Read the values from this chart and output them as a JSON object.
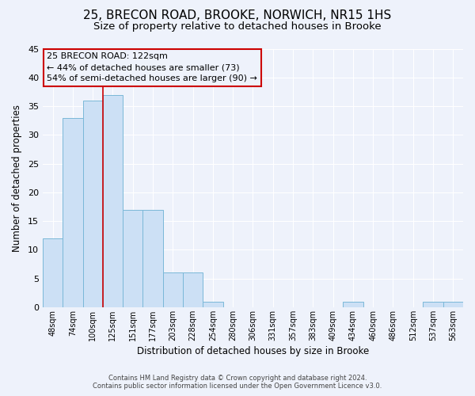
{
  "title": "25, BRECON ROAD, BROOKE, NORWICH, NR15 1HS",
  "subtitle": "Size of property relative to detached houses in Brooke",
  "xlabel": "Distribution of detached houses by size in Brooke",
  "ylabel": "Number of detached properties",
  "bar_labels": [
    "48sqm",
    "74sqm",
    "100sqm",
    "125sqm",
    "151sqm",
    "177sqm",
    "203sqm",
    "228sqm",
    "254sqm",
    "280sqm",
    "306sqm",
    "331sqm",
    "357sqm",
    "383sqm",
    "409sqm",
    "434sqm",
    "460sqm",
    "486sqm",
    "512sqm",
    "537sqm",
    "563sqm"
  ],
  "bar_values": [
    12,
    33,
    36,
    37,
    17,
    17,
    6,
    6,
    1,
    0,
    0,
    0,
    0,
    0,
    0,
    1,
    0,
    0,
    0,
    1,
    1
  ],
  "bar_color": "#cce0f5",
  "bar_edge_color": "#7ab8d8",
  "vline_color": "#cc0000",
  "ylim": [
    0,
    45
  ],
  "yticks": [
    0,
    5,
    10,
    15,
    20,
    25,
    30,
    35,
    40,
    45
  ],
  "annotation_line1": "25 BRECON ROAD: 122sqm",
  "annotation_line2": "← 44% of detached houses are smaller (73)",
  "annotation_line3": "54% of semi-detached houses are larger (90) →",
  "annotation_box_edge": "#cc0000",
  "footer_line1": "Contains HM Land Registry data © Crown copyright and database right 2024.",
  "footer_line2": "Contains public sector information licensed under the Open Government Licence v3.0.",
  "background_color": "#eef2fb",
  "grid_color": "#ffffff",
  "title_fontsize": 11,
  "subtitle_fontsize": 9.5
}
